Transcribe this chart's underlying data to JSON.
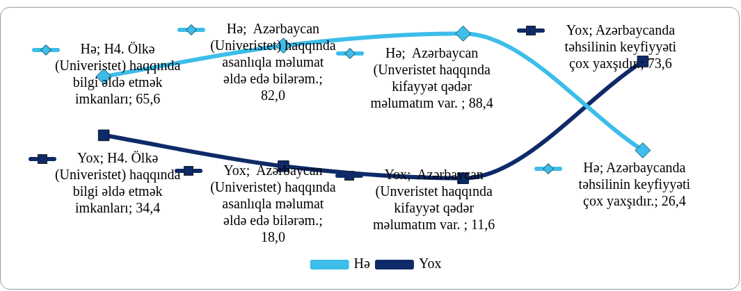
{
  "chart_data": {
    "type": "line",
    "categories": [
      null,
      null,
      null,
      null
    ],
    "tick_labels": false,
    "grid": false,
    "legend": "bottom",
    "line_style": "solid",
    "series": [
      {
        "name": "Hə",
        "color": "#3dbde9",
        "marker": "diamond",
        "values": [
          65.6,
          82.0,
          88.4,
          26.4
        ],
        "value_labels": [
          "Hə; H4. Ölkə (Univeristet) haqqında bilgi əldə etmək imkanları; 65,6",
          "Hə;  Azərbaycan (Univeristet) haqqında asanlıqla məlumat əldə edə bilərəm.; 82,0",
          "Hə;  Azərbaycan (Unveristet haqqında kifayyət qədər məlumatım var. ; 88,4",
          "Hə; Azərbaycanda təhsilinin keyfiyyəti çox yaxşıdır.; 26,4"
        ]
      },
      {
        "name": "Yox",
        "color": "#0e2a68",
        "marker": "square",
        "values": [
          34.4,
          18.0,
          11.6,
          73.6
        ],
        "value_labels": [
          "Yox; H4. Ölkə (Univeristet) haqqında bilgi əldə etmək imkanları; 34,4",
          "Yox;  Azərbaycan (Univeristet) haqqında asanlıqla məlumat əldə edə bilərəm.; 18,0",
          "Yox;  Azərbaycan (Unveristet haqqında kifayyət qədər məlumatım var. ; 11,6",
          "Yox; Azərbaycanda təhsilinin keyfiyyəti çox yaxşıdır.; 73,6"
        ]
      }
    ]
  }
}
